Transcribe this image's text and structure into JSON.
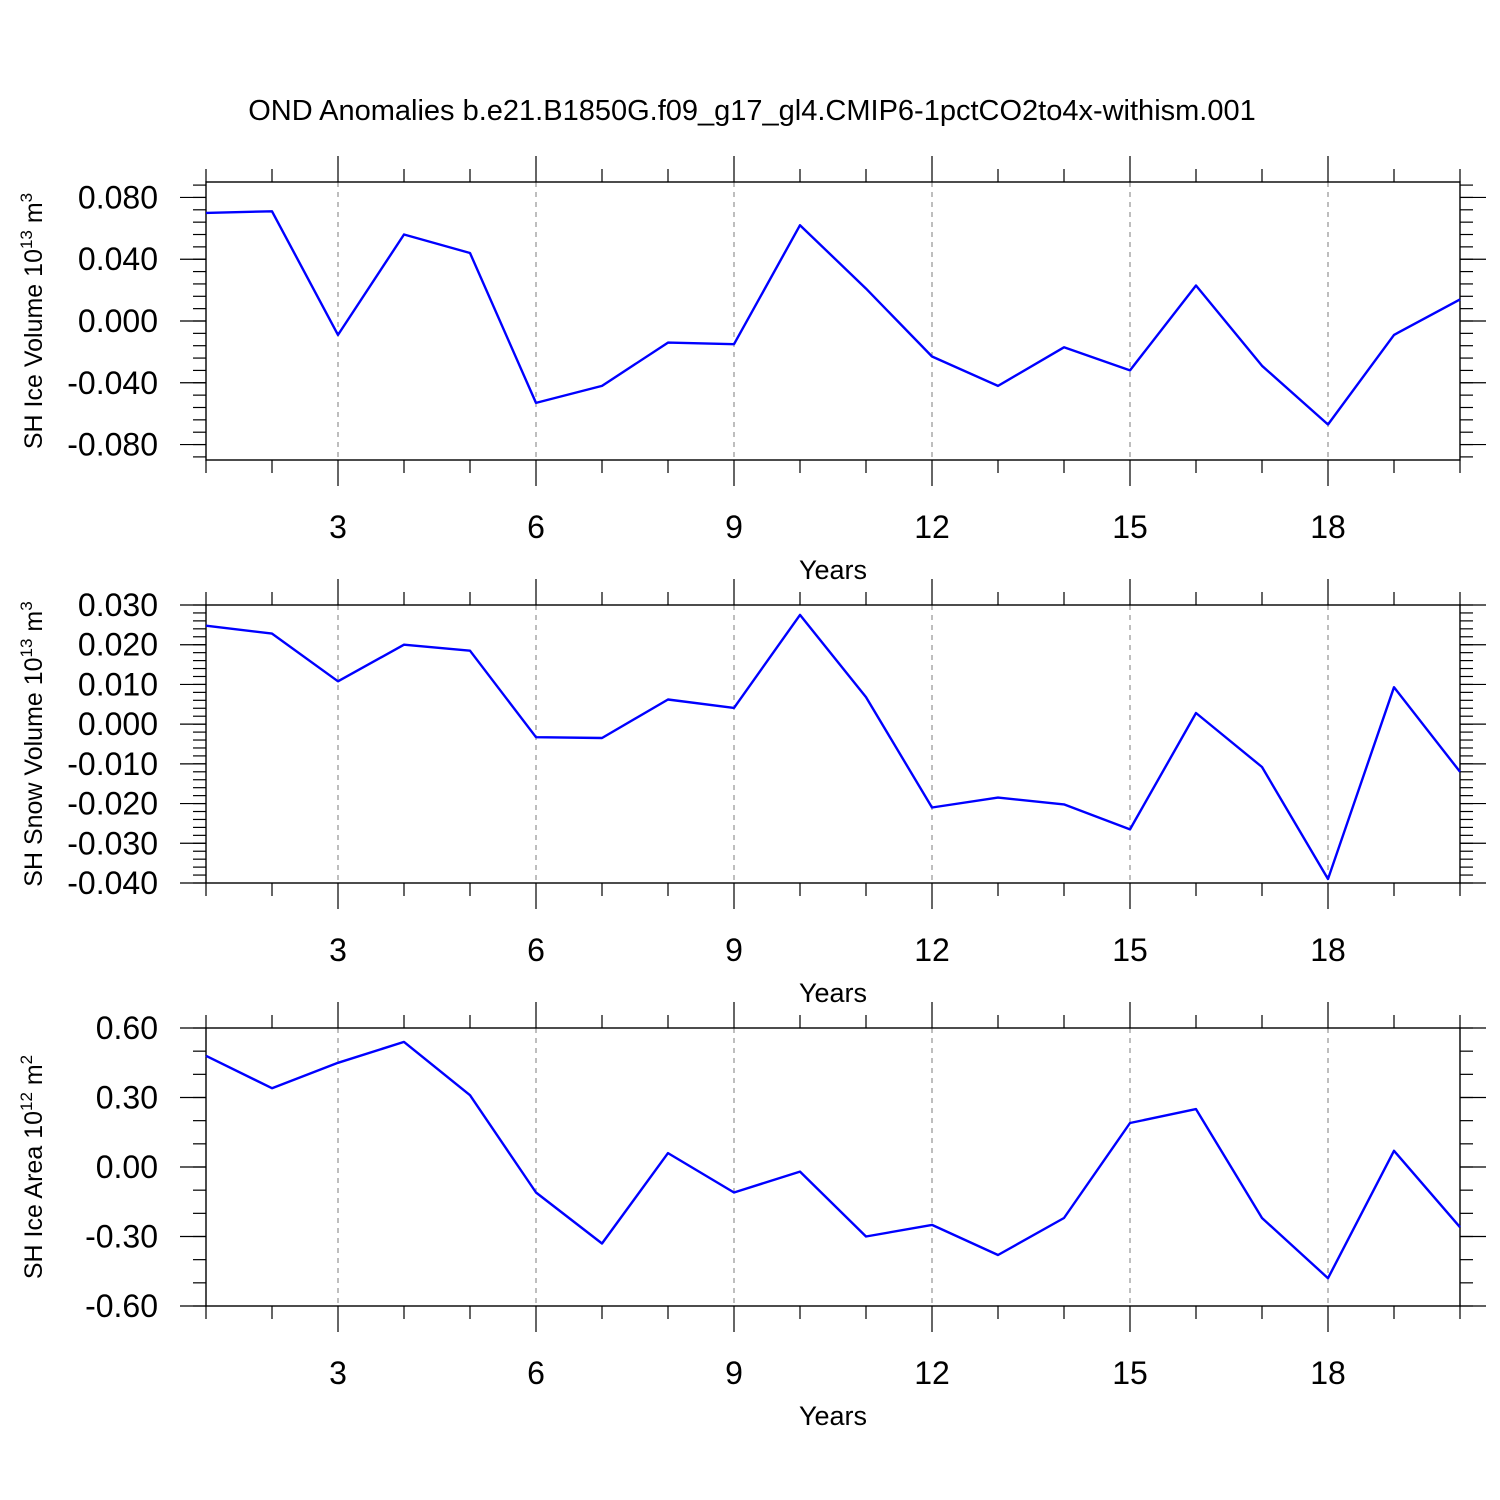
{
  "title": "OND Anomalies b.e21.B1850G.f09_g17_gl4.CMIP6-1pctCO2to4x-withism.001",
  "colors": {
    "line": "#0000ff",
    "grid": "#888888",
    "axis": "#000000"
  },
  "chart_data": [
    {
      "type": "line",
      "title": "OND Anomalies b.e21.B1850G.f09_g17_gl4.CMIP6-1pctCO2to4x-withism.001",
      "xlabel": "Years",
      "ylabel": {
        "text": "SH Ice Volume 10",
        "exp": "13",
        "unit": " m",
        "unit_exp": "3"
      },
      "xlim": [
        1,
        20
      ],
      "ylim": [
        -0.09,
        0.09
      ],
      "xticks": [
        3,
        6,
        9,
        12,
        15,
        18
      ],
      "xtick_labels": [
        "3",
        "6",
        "9",
        "12",
        "15",
        "18"
      ],
      "yticks": [
        -0.08,
        -0.04,
        0.0,
        0.04,
        0.08
      ],
      "ytick_labels": [
        "-0.080",
        "-0.040",
        "0.000",
        "0.040",
        "0.080"
      ],
      "y_minor_step": 0.008,
      "x": [
        1,
        2,
        3,
        4,
        5,
        6,
        7,
        8,
        9,
        10,
        11,
        12,
        13,
        14,
        15,
        16,
        17,
        18,
        19,
        20
      ],
      "series": [
        {
          "name": "SH Ice Volume",
          "values": [
            0.07,
            0.071,
            -0.009,
            0.056,
            0.044,
            -0.053,
            -0.042,
            -0.014,
            -0.015,
            0.062,
            0.021,
            -0.023,
            -0.042,
            -0.017,
            -0.032,
            0.023,
            -0.029,
            -0.067,
            -0.009,
            0.014
          ]
        }
      ]
    },
    {
      "type": "line",
      "xlabel": "Years",
      "ylabel": {
        "text": "SH Snow Volume 10",
        "exp": "13",
        "unit": " m",
        "unit_exp": "3"
      },
      "xlim": [
        1,
        20
      ],
      "ylim": [
        -0.04,
        0.03
      ],
      "xticks": [
        3,
        6,
        9,
        12,
        15,
        18
      ],
      "xtick_labels": [
        "3",
        "6",
        "9",
        "12",
        "15",
        "18"
      ],
      "yticks": [
        -0.04,
        -0.03,
        -0.02,
        -0.01,
        0.0,
        0.01,
        0.02,
        0.03
      ],
      "ytick_labels": [
        "-0.040",
        "-0.030",
        "-0.020",
        "-0.010",
        "0.000",
        "0.010",
        "0.020",
        "0.030"
      ],
      "y_minor_step": 0.002,
      "x": [
        1,
        2,
        3,
        4,
        5,
        6,
        7,
        8,
        9,
        10,
        11,
        12,
        13,
        14,
        15,
        16,
        17,
        18,
        19,
        20
      ],
      "series": [
        {
          "name": "SH Snow Volume",
          "values": [
            0.0248,
            0.0228,
            0.0108,
            0.02,
            0.0185,
            -0.0033,
            -0.0035,
            0.0062,
            0.0041,
            0.0275,
            0.0068,
            -0.021,
            -0.0185,
            -0.0202,
            -0.0265,
            0.0028,
            -0.0108,
            -0.039,
            0.0093,
            -0.012
          ]
        }
      ]
    },
    {
      "type": "line",
      "xlabel": "Years",
      "ylabel": {
        "text": "SH Ice Area 10",
        "exp": "12",
        "unit": " m",
        "unit_exp": "2"
      },
      "xlim": [
        1,
        20
      ],
      "ylim": [
        -0.6,
        0.6
      ],
      "xticks": [
        3,
        6,
        9,
        12,
        15,
        18
      ],
      "xtick_labels": [
        "3",
        "6",
        "9",
        "12",
        "15",
        "18"
      ],
      "yticks": [
        -0.6,
        -0.3,
        0.0,
        0.3,
        0.6
      ],
      "ytick_labels": [
        "-0.60",
        "-0.30",
        "0.00",
        "0.30",
        "0.60"
      ],
      "y_minor_step": 0.1,
      "x": [
        1,
        2,
        3,
        4,
        5,
        6,
        7,
        8,
        9,
        10,
        11,
        12,
        13,
        14,
        15,
        16,
        17,
        18,
        19,
        20
      ],
      "series": [
        {
          "name": "SH Ice Area",
          "values": [
            0.48,
            0.34,
            0.45,
            0.54,
            0.31,
            -0.11,
            -0.33,
            0.06,
            -0.11,
            -0.02,
            -0.3,
            -0.25,
            -0.38,
            -0.22,
            0.19,
            0.25,
            -0.22,
            -0.48,
            0.07,
            -0.26
          ]
        }
      ]
    }
  ]
}
